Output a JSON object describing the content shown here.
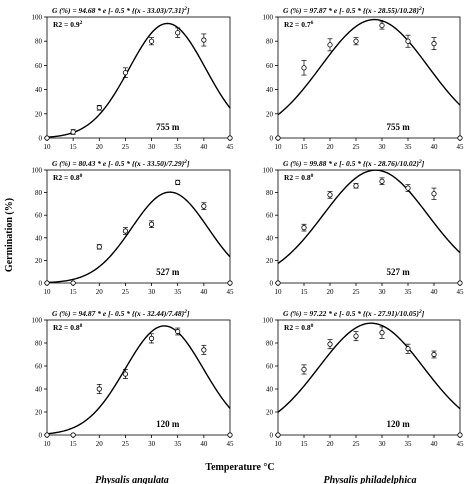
{
  "figure": {
    "ylabel": "Germination (%)",
    "xlabel": "Temperature °C",
    "species": [
      "Physalis angulata",
      "Physalis philadelphica"
    ]
  },
  "chart_data": [
    {
      "type": "scatter",
      "species": "Physalis angulata",
      "altitude": "755 m",
      "equation": "G (%) = 94.68 * e [- 0.5 * {(x - 33.03)/7.31}2]",
      "r2": "R2 = 0.92",
      "model": {
        "a": 94.68,
        "x0": 33.03,
        "b": 7.31
      },
      "x": [
        10,
        15,
        20,
        25,
        30,
        35,
        40,
        45
      ],
      "y": [
        0,
        5,
        25,
        54,
        80,
        87,
        81,
        0
      ],
      "err": [
        0,
        2,
        2,
        4,
        3,
        4,
        5,
        0
      ],
      "xticks": [
        "10",
        "15",
        "20",
        "25",
        "30",
        "35",
        "40",
        "45"
      ],
      "yticks": [
        "0",
        "20",
        "40",
        "60",
        "80",
        "100"
      ],
      "xlim": [
        10,
        45
      ],
      "ylim": [
        0,
        100
      ]
    },
    {
      "type": "scatter",
      "species": "Physalis philadelphica",
      "altitude": "755 m",
      "equation": "G (%) = 97.87 * e [- 0.5 * {(x - 28.55)/10.28}2]",
      "r2": "R2 = 0.76",
      "model": {
        "a": 97.87,
        "x0": 28.55,
        "b": 10.28
      },
      "x": [
        10,
        15,
        20,
        25,
        30,
        35,
        40,
        45
      ],
      "y": [
        0,
        58,
        77,
        80,
        93,
        80,
        78,
        0
      ],
      "err": [
        0,
        6,
        5,
        3,
        3,
        5,
        5,
        0
      ],
      "xticks": [
        "10",
        "15",
        "20",
        "25",
        "30",
        "35",
        "40",
        "45"
      ],
      "yticks": [
        "0",
        "20",
        "40",
        "60",
        "80",
        "100"
      ],
      "xlim": [
        10,
        45
      ],
      "ylim": [
        0,
        100
      ]
    },
    {
      "type": "scatter",
      "species": "Physalis angulata",
      "altitude": "527 m",
      "equation": "G (%) = 80.43 * e [- 0.5 * {(x - 33.50)/7.29}2]",
      "r2": "R2 = 0.80",
      "model": {
        "a": 80.43,
        "x0": 33.5,
        "b": 7.29
      },
      "x": [
        10,
        15,
        20,
        25,
        30,
        35,
        40,
        45
      ],
      "y": [
        0,
        0,
        32,
        46,
        52,
        89,
        68,
        0
      ],
      "err": [
        0,
        0,
        2,
        3,
        3,
        2,
        3,
        0
      ],
      "xticks": [
        "10",
        "15",
        "20",
        "25",
        "30",
        "35",
        "40",
        "45"
      ],
      "yticks": [
        "0",
        "20",
        "40",
        "60",
        "80",
        "100"
      ],
      "xlim": [
        10,
        45
      ],
      "ylim": [
        0,
        100
      ]
    },
    {
      "type": "scatter",
      "species": "Physalis philadelphica",
      "altitude": "527 m",
      "equation": "G (%) = 99.88 * e [- 0.5 * {(x - 28.76)/10.02}2]",
      "r2": "R2 = 0.80",
      "model": {
        "a": 99.88,
        "x0": 28.76,
        "b": 10.02
      },
      "x": [
        10,
        15,
        20,
        25,
        30,
        35,
        40,
        45
      ],
      "y": [
        0,
        49,
        78,
        86,
        90,
        84,
        79,
        0
      ],
      "err": [
        0,
        3,
        3,
        2,
        3,
        3,
        5,
        0
      ],
      "xticks": [
        "10",
        "15",
        "20",
        "25",
        "30",
        "35",
        "40",
        "45"
      ],
      "yticks": [
        "0",
        "20",
        "40",
        "60",
        "80",
        "100"
      ],
      "xlim": [
        10,
        45
      ],
      "ylim": [
        0,
        100
      ]
    },
    {
      "type": "scatter",
      "species": "Physalis angulata",
      "altitude": "120 m",
      "equation": "G (%) = 94.87 * e [- 0.5 * {(x - 32.44)/7.48}2]",
      "r2": "R2 = 0.88",
      "model": {
        "a": 94.87,
        "x0": 32.44,
        "b": 7.48
      },
      "x": [
        10,
        15,
        20,
        25,
        30,
        35,
        40,
        45
      ],
      "y": [
        0,
        0,
        40,
        53,
        84,
        90,
        74,
        0
      ],
      "err": [
        0,
        0,
        4,
        4,
        4,
        3,
        4,
        0
      ],
      "xticks": [
        "10",
        "15",
        "20",
        "25",
        "30",
        "35",
        "40",
        "45"
      ],
      "yticks": [
        "0",
        "20",
        "40",
        "60",
        "80",
        "100"
      ],
      "xlim": [
        10,
        45
      ],
      "ylim": [
        0,
        100
      ]
    },
    {
      "type": "scatter",
      "species": "Physalis philadelphica",
      "altitude": "120 m",
      "equation": "G (%) = 97.22 * e [- 0.5 * {(x - 27.91)/10.05}2]",
      "r2": "R2 = 0.80",
      "model": {
        "a": 97.22,
        "x0": 27.91,
        "b": 10.05
      },
      "x": [
        10,
        15,
        20,
        25,
        30,
        35,
        40,
        45
      ],
      "y": [
        0,
        57,
        79,
        86,
        89,
        75,
        70,
        0
      ],
      "err": [
        0,
        4,
        4,
        4,
        5,
        4,
        3,
        0
      ],
      "xticks": [
        "10",
        "15",
        "20",
        "25",
        "30",
        "35",
        "40",
        "45"
      ],
      "yticks": [
        "0",
        "20",
        "40",
        "60",
        "80",
        "100"
      ],
      "xlim": [
        10,
        45
      ],
      "ylim": [
        0,
        100
      ]
    }
  ]
}
